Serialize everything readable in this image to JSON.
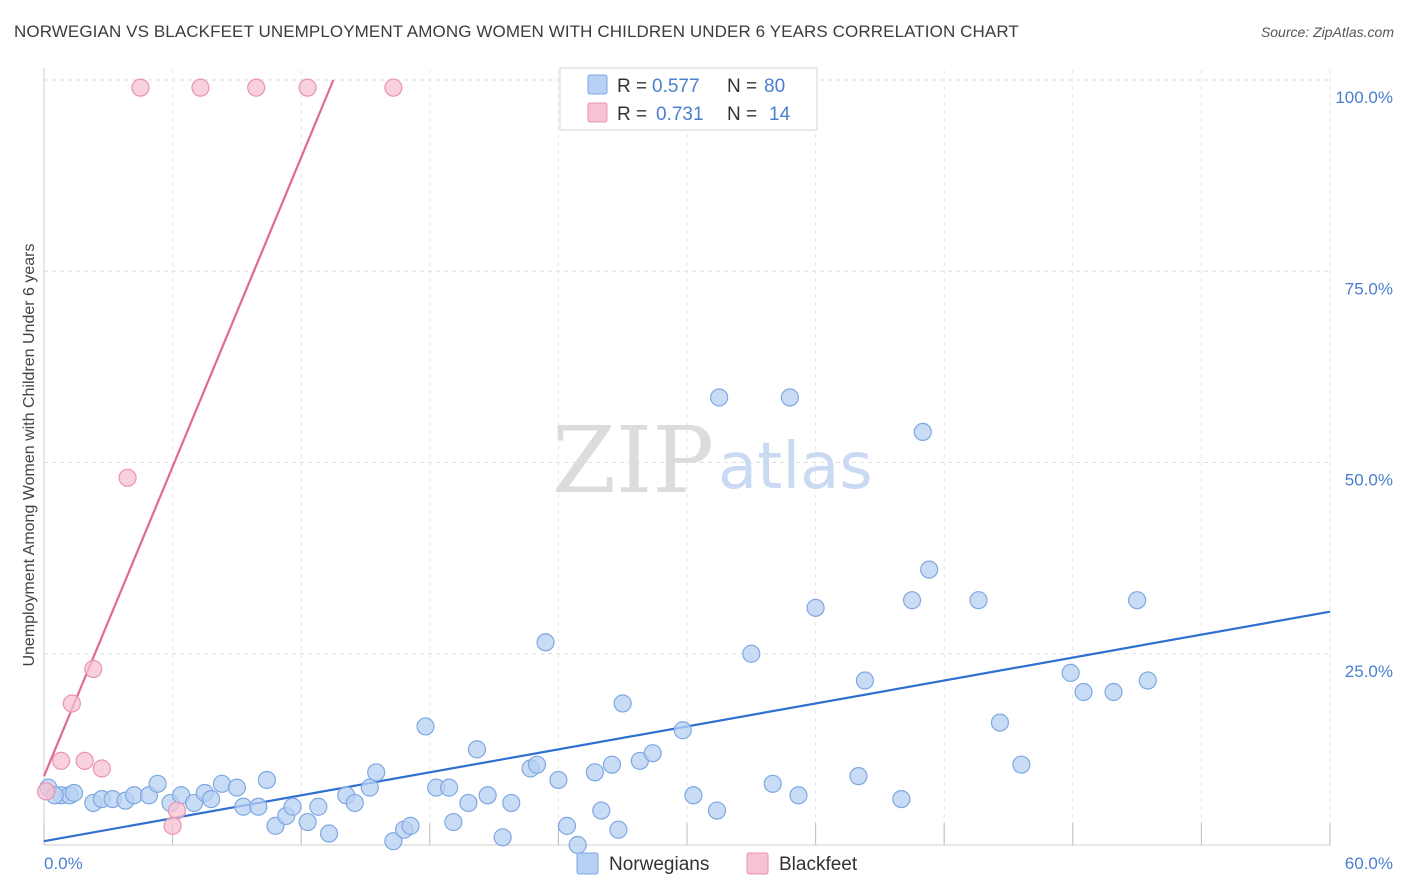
{
  "header": {
    "title": "NORWEGIAN VS BLACKFEET UNEMPLOYMENT AMONG WOMEN WITH CHILDREN UNDER 6 YEARS CORRELATION CHART",
    "source": "Source: ZipAtlas.com"
  },
  "watermark": {
    "zip": "ZIP",
    "atlas": "atlas"
  },
  "colors": {
    "blue_fill": "#b7d0f3",
    "blue_stroke": "#7ea8e2",
    "blue_line": "#2f6fd0",
    "pink_fill": "#f7c2d2",
    "pink_stroke": "#ea94b0",
    "pink_line": "#e06a93"
  },
  "chart_data": {
    "type": "scatter",
    "title": "NORWEGIAN VS BLACKFEET UNEMPLOYMENT AMONG WOMEN WITH CHILDREN UNDER 6 YEARS CORRELATION CHART",
    "xlabel": "",
    "ylabel": "Unemployment Among Women with Children Under 6 years",
    "xlim": [
      0,
      60
    ],
    "ylim": [
      0,
      100
    ],
    "x_tick_labels": [
      "0.0%",
      "60.0%"
    ],
    "y_tick_values": [
      25,
      50,
      75,
      100
    ],
    "y_tick_labels": [
      "25.0%",
      "50.0%",
      "75.0%",
      "100.0%"
    ],
    "legend": [
      {
        "name": "Norwegians",
        "r_label": "R =",
        "r_value": "0.577",
        "n_label": "N =",
        "n_value": "80"
      },
      {
        "name": "Blackfeet",
        "r_label": "R =",
        "r_value": "0.731",
        "n_label": "N =",
        "n_value": "14"
      }
    ],
    "series": [
      {
        "name": "Norwegians",
        "trendline": {
          "x": [
            0,
            60
          ],
          "y": [
            0.5,
            30.5
          ]
        },
        "points": [
          [
            0.2,
            7.5
          ],
          [
            0.8,
            6.5
          ],
          [
            1.2,
            6.5
          ],
          [
            1.4,
            6.8
          ],
          [
            2.3,
            5.5
          ],
          [
            2.7,
            6.0
          ],
          [
            3.2,
            6.0
          ],
          [
            3.8,
            5.8
          ],
          [
            4.2,
            6.5
          ],
          [
            4.9,
            6.5
          ],
          [
            5.3,
            8.0
          ],
          [
            5.9,
            5.5
          ],
          [
            6.4,
            6.5
          ],
          [
            7.0,
            5.5
          ],
          [
            7.5,
            6.8
          ],
          [
            7.8,
            6.0
          ],
          [
            8.3,
            8.0
          ],
          [
            9.0,
            7.5
          ],
          [
            9.3,
            5.0
          ],
          [
            10.0,
            5.0
          ],
          [
            10.4,
            8.5
          ],
          [
            10.8,
            2.5
          ],
          [
            11.3,
            3.8
          ],
          [
            11.6,
            5.0
          ],
          [
            12.3,
            3.0
          ],
          [
            12.8,
            5.0
          ],
          [
            13.3,
            1.5
          ],
          [
            14.1,
            6.5
          ],
          [
            14.5,
            5.5
          ],
          [
            15.2,
            7.5
          ],
          [
            15.5,
            9.5
          ],
          [
            16.3,
            0.5
          ],
          [
            16.8,
            2.0
          ],
          [
            17.1,
            2.5
          ],
          [
            17.8,
            15.5
          ],
          [
            18.3,
            7.5
          ],
          [
            18.9,
            7.5
          ],
          [
            19.1,
            3.0
          ],
          [
            19.8,
            5.5
          ],
          [
            20.2,
            12.5
          ],
          [
            20.7,
            6.5
          ],
          [
            21.4,
            1.0
          ],
          [
            21.8,
            5.5
          ],
          [
            22.7,
            10.0
          ],
          [
            23.0,
            10.5
          ],
          [
            23.4,
            26.5
          ],
          [
            24.0,
            8.5
          ],
          [
            24.4,
            2.5
          ],
          [
            24.9,
            0.0
          ],
          [
            25.7,
            9.5
          ],
          [
            26.0,
            4.5
          ],
          [
            26.5,
            10.5
          ],
          [
            26.8,
            2.0
          ],
          [
            27.0,
            18.5
          ],
          [
            27.8,
            11.0
          ],
          [
            28.4,
            12.0
          ],
          [
            29.8,
            15.0
          ],
          [
            30.3,
            6.5
          ],
          [
            31.4,
            4.5
          ],
          [
            31.5,
            58.5
          ],
          [
            33.0,
            25.0
          ],
          [
            34.0,
            8.0
          ],
          [
            34.8,
            58.5
          ],
          [
            35.2,
            6.5
          ],
          [
            36.0,
            31.0
          ],
          [
            38.0,
            9.0
          ],
          [
            38.3,
            21.5
          ],
          [
            40.0,
            6.0
          ],
          [
            40.5,
            32.0
          ],
          [
            41.0,
            54.0
          ],
          [
            41.3,
            36.0
          ],
          [
            43.6,
            32.0
          ],
          [
            44.6,
            16.0
          ],
          [
            45.6,
            10.5
          ],
          [
            47.9,
            22.5
          ],
          [
            48.5,
            20.0
          ],
          [
            49.9,
            20.0
          ],
          [
            51.0,
            32.0
          ],
          [
            51.5,
            21.5
          ],
          [
            0.5,
            6.5
          ]
        ]
      },
      {
        "name": "Blackfeet",
        "trendline": {
          "x": [
            0,
            13.5
          ],
          "y": [
            9.0,
            100
          ]
        },
        "points": [
          [
            4.5,
            99
          ],
          [
            7.3,
            99
          ],
          [
            9.9,
            99
          ],
          [
            12.3,
            99
          ],
          [
            16.3,
            99
          ],
          [
            3.9,
            48
          ],
          [
            2.3,
            23
          ],
          [
            1.3,
            18.5
          ],
          [
            0.8,
            11
          ],
          [
            1.9,
            11
          ],
          [
            2.7,
            10
          ],
          [
            6.2,
            4.5
          ],
          [
            6.0,
            2.5
          ],
          [
            0.1,
            7.0
          ]
        ]
      }
    ]
  }
}
